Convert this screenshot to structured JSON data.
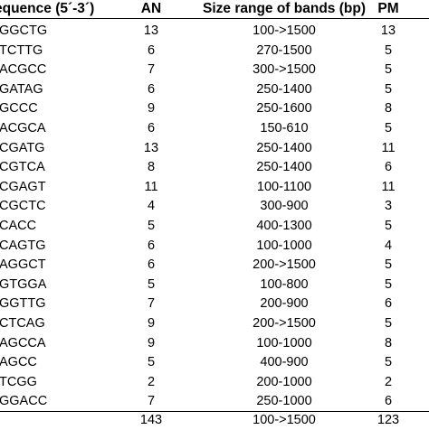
{
  "header": {
    "sequence": "equence (5´-3´)",
    "an": "AN",
    "size_range": "Size range of bands (bp)",
    "pm": "PM"
  },
  "rows": [
    {
      "seq": "GGCTG",
      "an": "13",
      "size": "100->1500",
      "pm": "13"
    },
    {
      "seq": "TCTTG",
      "an": "6",
      "size": "270-1500",
      "pm": "5"
    },
    {
      "seq": "ACGCC",
      "an": "7",
      "size": "300->1500",
      "pm": "5"
    },
    {
      "seq": "GATAG",
      "an": "6",
      "size": "250-1400",
      "pm": "5"
    },
    {
      "seq": "GCCC",
      "an": "9",
      "size": "250-1600",
      "pm": "8"
    },
    {
      "seq": "ACGCA",
      "an": "6",
      "size": "150-610",
      "pm": "5"
    },
    {
      "seq": "CGATG",
      "an": "13",
      "size": "250-1400",
      "pm": "11"
    },
    {
      "seq": "CGTCA",
      "an": "8",
      "size": "250-1400",
      "pm": "6"
    },
    {
      "seq": "CGAGT",
      "an": "11",
      "size": "100-1100",
      "pm": "11"
    },
    {
      "seq": "CGCTC",
      "an": "4",
      "size": "300-900",
      "pm": "3"
    },
    {
      "seq": "CACC",
      "an": "5",
      "size": "400-1300",
      "pm": "5"
    },
    {
      "seq": "CAGTG",
      "an": "6",
      "size": "100-1000",
      "pm": "4"
    },
    {
      "seq": "AGGCT",
      "an": "6",
      "size": "200->1500",
      "pm": "5"
    },
    {
      "seq": "GTGGA",
      "an": "5",
      "size": "100-800",
      "pm": "5"
    },
    {
      "seq": "GGTTG",
      "an": "7",
      "size": "200-900",
      "pm": "6"
    },
    {
      "seq": "CTCAG",
      "an": "9",
      "size": "200->1500",
      "pm": "5"
    },
    {
      "seq": "AGCCA",
      "an": "9",
      "size": "100-1000",
      "pm": "8"
    },
    {
      "seq": "AGCC",
      "an": "5",
      "size": "400-900",
      "pm": "5"
    },
    {
      "seq": "TCGG",
      "an": "2",
      "size": "200-1000",
      "pm": "2"
    },
    {
      "seq": "GGACC",
      "an": "7",
      "size": "250-1000",
      "pm": "6"
    }
  ],
  "total": {
    "an": "143",
    "size": "100->1500",
    "pm": "123"
  }
}
